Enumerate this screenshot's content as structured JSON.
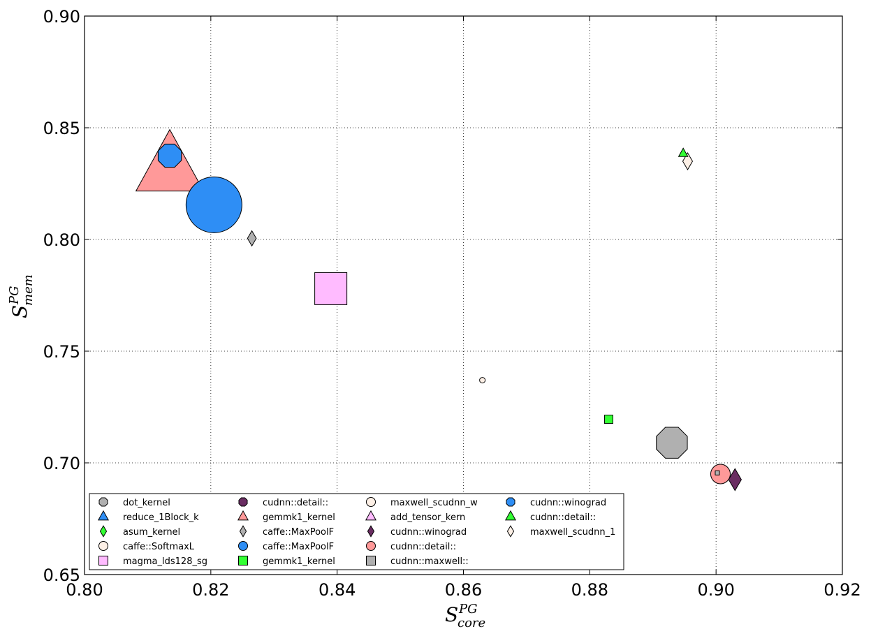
{
  "chart_data": {
    "type": "scatter",
    "title": "",
    "xlabel": {
      "main": "S",
      "sup": "PG",
      "sub": "core"
    },
    "ylabel": {
      "main": "S",
      "sup": "PG",
      "sub": "mem"
    },
    "xlim": [
      0.8,
      0.92
    ],
    "ylim": [
      0.65,
      0.9
    ],
    "xticks": [
      "0.80",
      "0.82",
      "0.84",
      "0.86",
      "0.88",
      "0.90",
      "0.92"
    ],
    "yticks": [
      "0.65",
      "0.70",
      "0.75",
      "0.80",
      "0.85",
      "0.90"
    ],
    "grid": true,
    "legend_position": "lower-left",
    "series": [
      {
        "name": "dot_kernel",
        "marker": "octagon",
        "color": "#b0b0b0",
        "x": 0.893,
        "y": 0.709,
        "size": 24
      },
      {
        "name": "reduce_1Block_k",
        "marker": "triangle",
        "color": "#2e8ef5",
        "x": null,
        "y": null,
        "size": 0
      },
      {
        "name": "asum_kernel",
        "marker": "diamond",
        "color": "#33ff33",
        "x": null,
        "y": null,
        "size": 0
      },
      {
        "name": "caffe::SoftmaxL",
        "marker": "circle",
        "color": "#fdf0e6",
        "x": 0.863,
        "y": 0.737,
        "size": 4
      },
      {
        "name": "magma_lds128_sg",
        "marker": "square",
        "color": "#ffbbff",
        "x": 0.839,
        "y": 0.778,
        "size": 23
      },
      {
        "name": "cudnn::detail::",
        "marker": "octagon",
        "color": "#6a2d62",
        "x": null,
        "y": null,
        "size": 0
      },
      {
        "name": "gemmk1_kernel",
        "marker": "triangle",
        "color": "#ff9999",
        "x": 0.8135,
        "y": 0.832,
        "size": 44
      },
      {
        "name": "caffe::MaxPoolF",
        "marker": "diamond",
        "color": "#b0b0b0",
        "x": 0.8265,
        "y": 0.8005,
        "size": 9
      },
      {
        "name": "caffe::MaxPoolF",
        "marker": "circle",
        "color": "#2e8ef5",
        "x": 0.8205,
        "y": 0.8155,
        "size": 40
      },
      {
        "name": "gemmk1_kernel",
        "marker": "square",
        "color": "#33ff33",
        "x": 0.883,
        "y": 0.7195,
        "size": 6
      },
      {
        "name": "maxwell_scudnn_w",
        "marker": "circle",
        "color": "#fdf0e6",
        "x": null,
        "y": null,
        "size": 0
      },
      {
        "name": "add_tensor_kern",
        "marker": "triangle",
        "color": "#ffbbff",
        "x": null,
        "y": null,
        "size": 0
      },
      {
        "name": "cudnn::winograd",
        "marker": "diamond",
        "color": "#6a2d62",
        "x": 0.903,
        "y": 0.6925,
        "size": 13
      },
      {
        "name": "cudnn::detail::",
        "marker": "circle",
        "color": "#ff9999",
        "x": 0.9007,
        "y": 0.695,
        "size": 14
      },
      {
        "name": "cudnn::maxwell::",
        "marker": "square",
        "color": "#b0b0b0",
        "x": 0.9002,
        "y": 0.6955,
        "size": 3
      },
      {
        "name": "cudnn::winograd",
        "marker": "octagon",
        "color": "#2e8ef5",
        "x": 0.8135,
        "y": 0.8375,
        "size": 18
      },
      {
        "name": "cudnn::detail::",
        "marker": "triangle",
        "color": "#33ff33",
        "x": 0.8948,
        "y": 0.8385,
        "size": 6
      },
      {
        "name": "maxwell_scudnn_1",
        "marker": "diamond",
        "color": "#fdf0e6",
        "x": 0.8955,
        "y": 0.835,
        "size": 10
      }
    ]
  }
}
